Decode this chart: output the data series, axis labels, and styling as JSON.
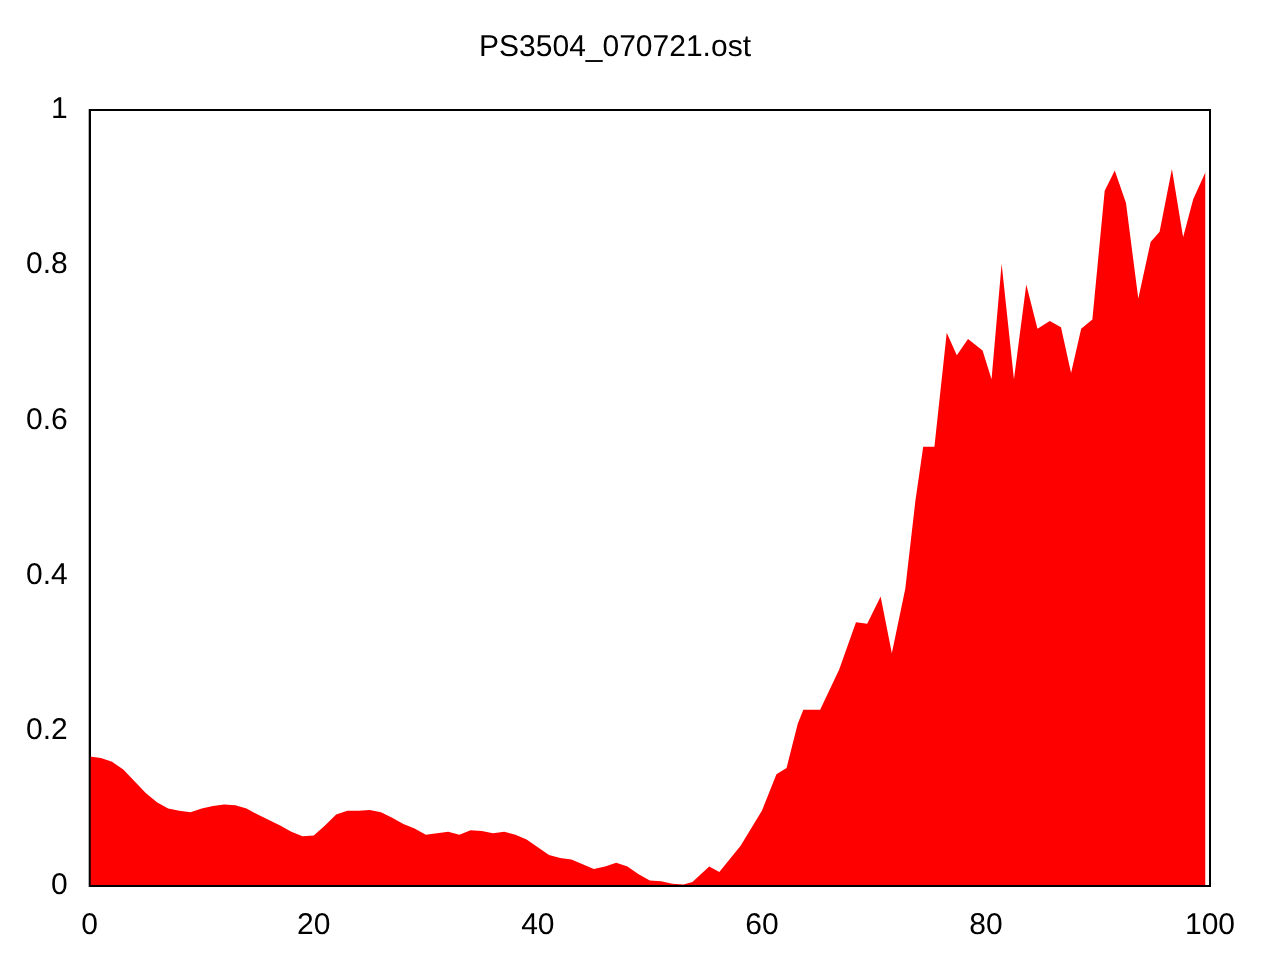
{
  "chart_data": {
    "type": "area",
    "title": "PS3504_070721.ost",
    "x": [
      0,
      1,
      2,
      3,
      4,
      5,
      6,
      7,
      8,
      9,
      10,
      11,
      12,
      13,
      14,
      15,
      16,
      17,
      18,
      19,
      20,
      21,
      22,
      23,
      24,
      25,
      26,
      27,
      28,
      29,
      30,
      31,
      32,
      33,
      34,
      35,
      36,
      37,
      38,
      39,
      40,
      41,
      42,
      43,
      44,
      45,
      46,
      47,
      48,
      49,
      50,
      51,
      52,
      53,
      53.8,
      55.3,
      56.2,
      58.1,
      60,
      61.3,
      62.2,
      63.2,
      63.7,
      65.2,
      66.9,
      68.4,
      69.4,
      70.6,
      71.6,
      72.8,
      73.7,
      74.4,
      75.4,
      76.5,
      77.4,
      78.4,
      79.7,
      80.5,
      81.4,
      82.5,
      83.6,
      84.6,
      85.7,
      86.7,
      87.6,
      88.5,
      89.5,
      90.6,
      91.5,
      92.5,
      93.6,
      94.7,
      95.5,
      96.6,
      97.6,
      98.5,
      99.6
    ],
    "series": [
      {
        "color": "#ff0000",
        "values": [
          0.167,
          0.165,
          0.16,
          0.15,
          0.135,
          0.12,
          0.108,
          0.1,
          0.097,
          0.095,
          0.1,
          0.103,
          0.105,
          0.104,
          0.1,
          0.092,
          0.085,
          0.078,
          0.07,
          0.064,
          0.065,
          0.078,
          0.092,
          0.097,
          0.097,
          0.098,
          0.095,
          0.088,
          0.08,
          0.074,
          0.066,
          0.068,
          0.07,
          0.066,
          0.072,
          0.071,
          0.068,
          0.07,
          0.066,
          0.06,
          0.05,
          0.04,
          0.036,
          0.034,
          0.028,
          0.022,
          0.025,
          0.03,
          0.025,
          0.015,
          0.007,
          0.006,
          0.003,
          0.002,
          0.005,
          0.025,
          0.018,
          0.052,
          0.097,
          0.144,
          0.152,
          0.209,
          0.227,
          0.227,
          0.279,
          0.34,
          0.338,
          0.373,
          0.3,
          0.383,
          0.496,
          0.566,
          0.566,
          0.713,
          0.684,
          0.705,
          0.69,
          0.653,
          0.802,
          0.653,
          0.775,
          0.718,
          0.728,
          0.72,
          0.661,
          0.718,
          0.73,
          0.896,
          0.922,
          0.88,
          0.757,
          0.83,
          0.843,
          0.924,
          0.836,
          0.885,
          0.92
        ]
      }
    ],
    "xlim": [
      0,
      100
    ],
    "xticks": [
      0,
      20,
      40,
      60,
      80,
      100
    ],
    "ylim": [
      0,
      1
    ],
    "yticks": [
      0,
      0.2,
      0.4,
      0.6,
      0.8,
      1
    ],
    "grid": false,
    "legend": false
  }
}
